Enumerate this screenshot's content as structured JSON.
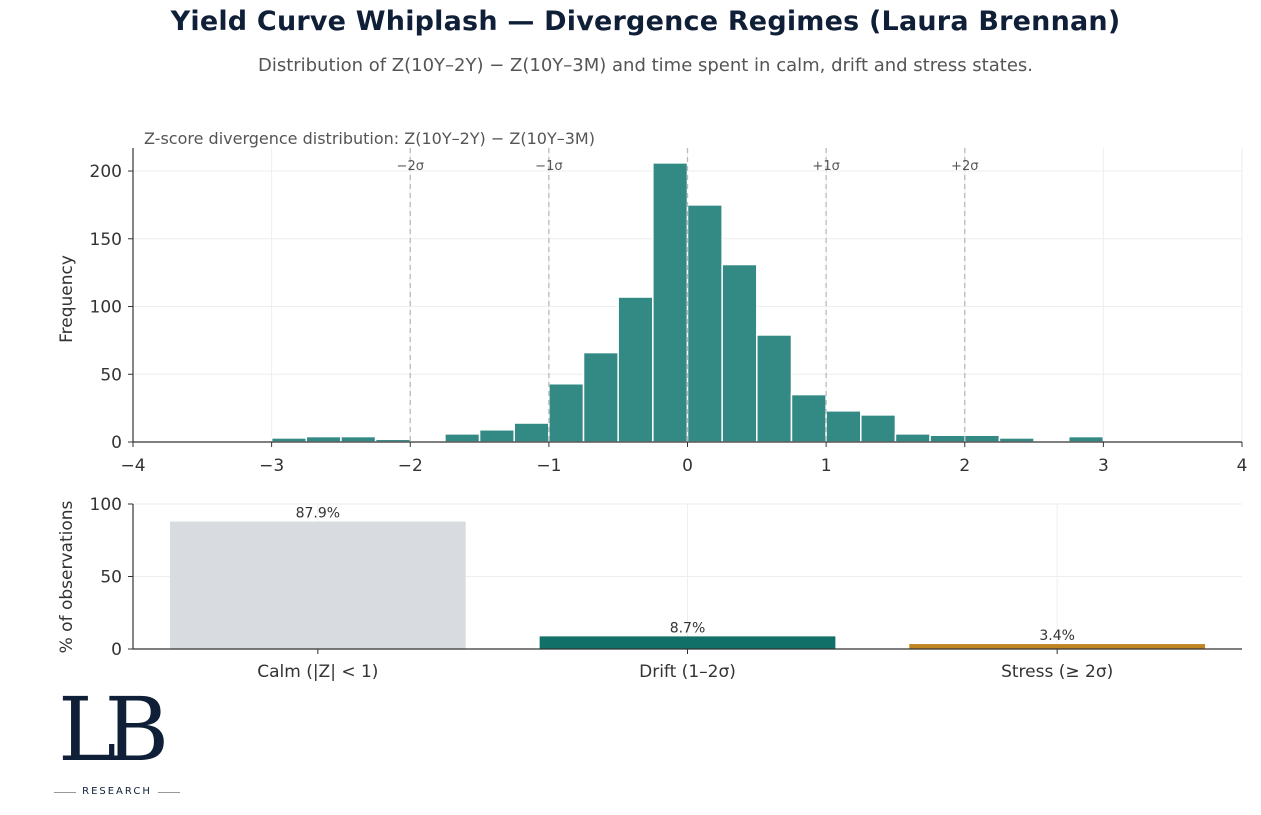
{
  "page": {
    "title": "Yield Curve Whiplash — Divergence Regimes (Laura Brennan)",
    "subtitle": "Distribution of Z(10Y–2Y) − Z(10Y–3M) and time spent in calm, drift and stress states."
  },
  "logo": {
    "mark": "LB",
    "word": "RESEARCH"
  },
  "chart_data": [
    {
      "type": "bar",
      "title": "Z-score divergence distribution: Z(10Y–2Y) − Z(10Y–3M)",
      "xlabel": "",
      "ylabel": "Frequency",
      "xlim": [
        -4,
        4
      ],
      "ylim": [
        0,
        217
      ],
      "grid": true,
      "bin_width": 0.25,
      "bins_start": [
        -3.5,
        -3.25,
        -3.0,
        -2.75,
        -2.5,
        -2.25,
        -2.0,
        -1.75,
        -1.5,
        -1.25,
        -1.0,
        -0.75,
        -0.5,
        -0.25,
        0.0,
        0.25,
        0.5,
        0.75,
        1.0,
        1.25,
        1.5,
        1.75,
        2.0,
        2.25,
        2.5,
        2.75
      ],
      "values": [
        1,
        1,
        3,
        4,
        4,
        2,
        0,
        6,
        9,
        14,
        43,
        66,
        107,
        206,
        175,
        131,
        79,
        35,
        23,
        20,
        6,
        5,
        5,
        3,
        0,
        4
      ],
      "xticks": [
        -4,
        -3,
        -2,
        -1,
        0,
        1,
        2,
        3,
        4
      ],
      "xtick_labels": [
        "−4",
        "−3",
        "−2",
        "−1",
        "0",
        "1",
        "2",
        "3",
        "4"
      ],
      "yticks": [
        0,
        50,
        100,
        150,
        200
      ],
      "ytick_labels": [
        "0",
        "50",
        "100",
        "150",
        "200"
      ],
      "reference_lines": [
        {
          "x": -2,
          "label": "−2σ"
        },
        {
          "x": -1,
          "label": "−1σ"
        },
        {
          "x": 0,
          "label": ""
        },
        {
          "x": 1,
          "label": "+1σ"
        },
        {
          "x": 2,
          "label": "+2σ"
        }
      ],
      "color": "#338a85"
    },
    {
      "type": "bar",
      "title": "",
      "xlabel": "",
      "ylabel": "% of observations",
      "ylim": [
        0,
        100
      ],
      "grid": true,
      "categories": [
        "Calm (|Z| < 1)",
        "Drift (1–2σ)",
        "Stress (≥ 2σ)"
      ],
      "values": [
        87.9,
        8.7,
        3.4
      ],
      "value_labels": [
        "87.9%",
        "8.7%",
        "3.4%"
      ],
      "yticks": [
        0,
        50,
        100
      ],
      "ytick_labels": [
        "0",
        "50",
        "100"
      ],
      "colors": [
        "#d8dce0",
        "#117068",
        "#c08423"
      ]
    }
  ]
}
